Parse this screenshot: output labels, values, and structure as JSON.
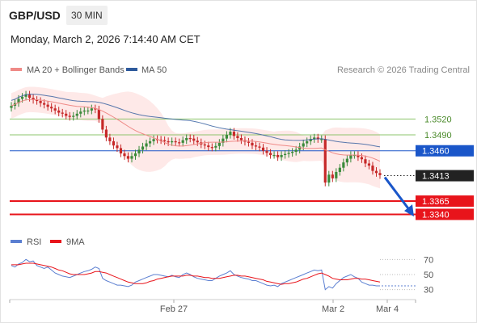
{
  "header": {
    "symbol": "GBP/USD",
    "interval": "30 MIN",
    "datetime": "Monday, March 2, 2026 7:14:40 AM CET"
  },
  "colors": {
    "ma20": "#ef8a87",
    "ma50": "#2e5a9c",
    "bollinger_fill": "#fde1e0",
    "up": "#3a8a3a",
    "down": "#c62828",
    "resistance": "#8dc46c",
    "pivot": "#1a56c9",
    "support": "#e8141b",
    "current": "#222222",
    "rsi": "#5b7fd1",
    "rsi_ma": "#e8141b"
  },
  "chart_data": [
    {
      "type": "candlestick",
      "legend": {
        "placement": "top-left",
        "items": [
          "MA 20 + Bollinger Bands",
          "MA 50"
        ]
      },
      "watermark": "Research © 2026 Trading Central",
      "ylim": [
        1.333,
        1.358
      ],
      "x_ticks": [
        "Feb 27",
        "Mar 2",
        "Mar 4"
      ],
      "price_levels": [
        {
          "value": "1.3520",
          "kind": "resistance"
        },
        {
          "value": "1.3490",
          "kind": "resistance"
        },
        {
          "value": "1.3460",
          "kind": "pivot"
        },
        {
          "value": "1.3413",
          "kind": "current"
        },
        {
          "value": "1.3365",
          "kind": "support"
        },
        {
          "value": "1.3340",
          "kind": "support"
        }
      ],
      "close": [
        1.3545,
        1.355,
        1.3558,
        1.3562,
        1.3566,
        1.356,
        1.3556,
        1.3554,
        1.355,
        1.3547,
        1.3543,
        1.354,
        1.3536,
        1.3532,
        1.353,
        1.3526,
        1.3524,
        1.3526,
        1.353,
        1.3534,
        1.3536,
        1.3536,
        1.354,
        1.3538,
        1.352,
        1.35,
        1.3485,
        1.3478,
        1.347,
        1.3465,
        1.3455,
        1.345,
        1.3445,
        1.345,
        1.3455,
        1.3462,
        1.3468,
        1.3474,
        1.3478,
        1.3482,
        1.3481,
        1.348,
        1.3478,
        1.3476,
        1.3478,
        1.3476,
        1.3475,
        1.348,
        1.3484,
        1.3483,
        1.3479,
        1.3476,
        1.3472,
        1.347,
        1.3467,
        1.3466,
        1.3469,
        1.3475,
        1.3483,
        1.349,
        1.3496,
        1.3488,
        1.3484,
        1.348,
        1.3477,
        1.3475,
        1.347,
        1.3468,
        1.3466,
        1.346,
        1.3456,
        1.3452,
        1.3452,
        1.3448,
        1.3452,
        1.3454,
        1.3456,
        1.3458,
        1.3462,
        1.3468,
        1.3474,
        1.3478,
        1.3482,
        1.3485,
        1.3482,
        1.3482,
        1.34,
        1.3415,
        1.3408,
        1.342,
        1.3428,
        1.3438,
        1.3445,
        1.3452,
        1.3452,
        1.3448,
        1.3444,
        1.3436,
        1.3432,
        1.3422,
        1.3418,
        1.3414
      ],
      "ma20_value": 1.3448,
      "ma50_value": 1.3461
    },
    {
      "type": "line",
      "legend": {
        "placement": "top-left",
        "items": [
          "RSI",
          "9MA"
        ]
      },
      "y_ticks": [
        "70",
        "50",
        "30"
      ],
      "ylim": [
        20,
        80
      ],
      "rsi": [
        62,
        60,
        64,
        66,
        70,
        67,
        68,
        62,
        60,
        58,
        60,
        56,
        52,
        50,
        48,
        47,
        46,
        48,
        50,
        52,
        54,
        55,
        57,
        60,
        58,
        45,
        42,
        40,
        38,
        36,
        36,
        35,
        34,
        36,
        40,
        42,
        44,
        46,
        48,
        50,
        50,
        49,
        48,
        47,
        49,
        47,
        46,
        50,
        52,
        50,
        47,
        45,
        44,
        43,
        42,
        42,
        45,
        48,
        50,
        52,
        55,
        50,
        48,
        46,
        45,
        44,
        42,
        42,
        40,
        38,
        36,
        35,
        36,
        34,
        38,
        40,
        42,
        44,
        46,
        48,
        50,
        52,
        54,
        56,
        55,
        56,
        30,
        34,
        32,
        38,
        42,
        46,
        48,
        50,
        47,
        45,
        40,
        38,
        36,
        36,
        35,
        35
      ],
      "rsi_ma": [
        63,
        63,
        63,
        64,
        65,
        65,
        65,
        64,
        63,
        62,
        61,
        60,
        58,
        56,
        55,
        53,
        51,
        50,
        50,
        50,
        50,
        51,
        52,
        54,
        54,
        53,
        52,
        50,
        48,
        46,
        44,
        42,
        40,
        39,
        38,
        38,
        38,
        39,
        41,
        42,
        44,
        45,
        46,
        47,
        48,
        48,
        48,
        48,
        49,
        49,
        48,
        48,
        47,
        46,
        46,
        45,
        45,
        45,
        46,
        47,
        48,
        49,
        49,
        48,
        48,
        47,
        46,
        45,
        44,
        43,
        41,
        40,
        39,
        38,
        37,
        38,
        38,
        39,
        40,
        42,
        44,
        45,
        47,
        49,
        51,
        52,
        50,
        48,
        45,
        44,
        43,
        43,
        43,
        44,
        45,
        45,
        44,
        44,
        43,
        42,
        41,
        40
      ]
    }
  ]
}
